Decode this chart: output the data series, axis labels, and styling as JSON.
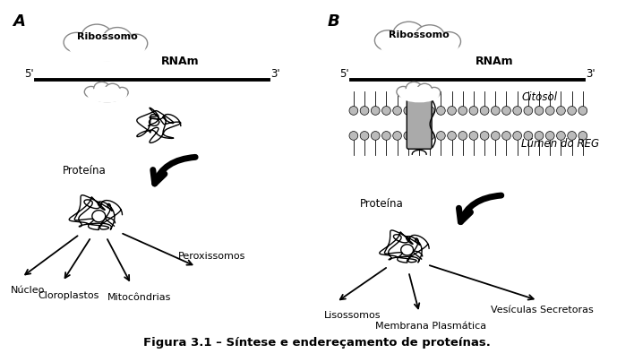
{
  "title": "Figura 3.1 – Síntese e endereçamento de proteínas.",
  "panel_A_label": "A",
  "panel_B_label": "B",
  "bg_color": "#ffffff",
  "labels_A": {
    "ribosome": "Ribossomo",
    "rnam": "RNAm",
    "five_prime": "5'",
    "three_prime": "3'",
    "proteina": "Proteína",
    "nucleo": "Núcleo",
    "cloroplastos": "Cloroplastos",
    "mitocondrias": "Mitocôndrias",
    "peroxissomos": "Peroxissomos"
  },
  "labels_B": {
    "ribosome": "Ribossomo",
    "rnam": "RNAm",
    "five_prime": "5'",
    "three_prime": "3'",
    "citosol": "Citosol",
    "lumen": "Lúmen do REG",
    "proteina": "Proteína",
    "lisossomos": "Lisossomos",
    "membrana": "Membrana Plasmática",
    "vesiculas": "Vesículas Secretoras"
  }
}
